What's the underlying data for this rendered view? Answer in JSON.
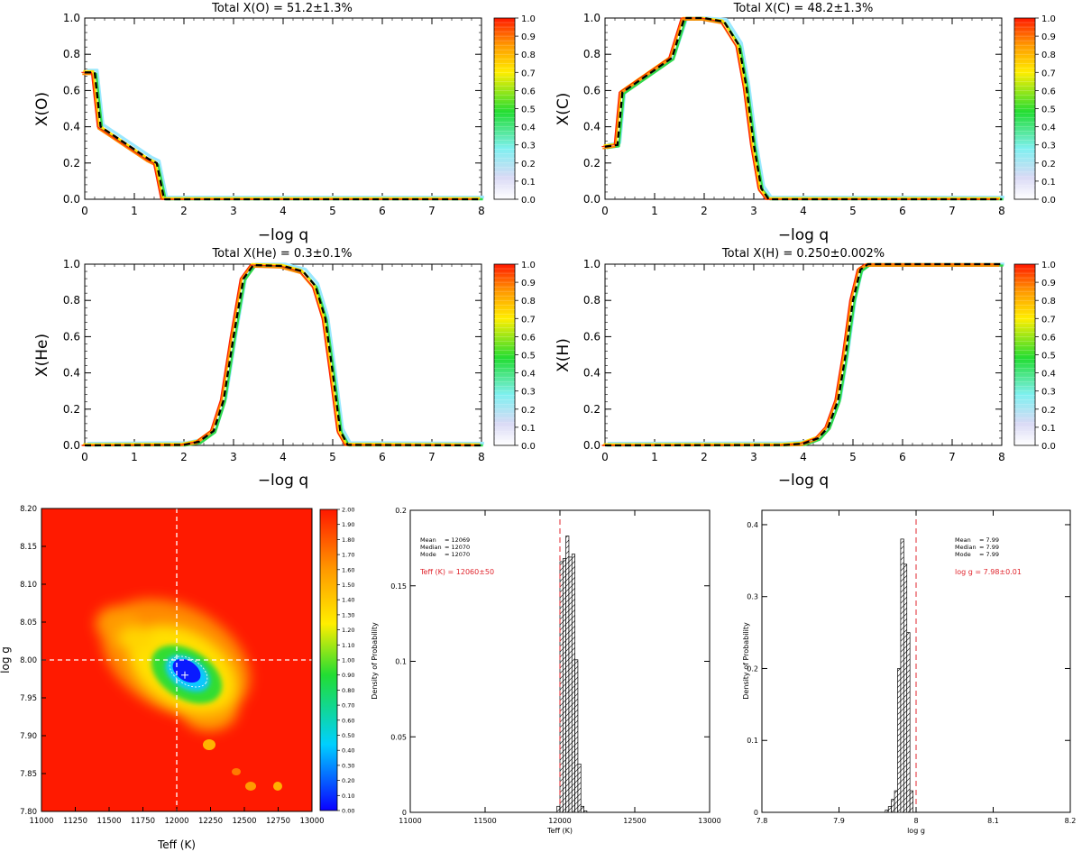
{
  "figure": {
    "colorbar_ticks": [
      "0.0",
      "0.1",
      "0.2",
      "0.3",
      "0.4",
      "0.5",
      "0.6",
      "0.7",
      "0.8",
      "0.9",
      "1.0"
    ],
    "contour_colorbar_ticks": [
      "0.00",
      "0.10",
      "0.20",
      "0.30",
      "0.40",
      "0.50",
      "0.60",
      "0.70",
      "0.80",
      "0.90",
      "1.00",
      "1.10",
      "1.20",
      "1.30",
      "1.40",
      "1.50",
      "1.60",
      "1.70",
      "1.80",
      "1.90",
      "2.00"
    ],
    "colors": {
      "dashed_profile": "#000000",
      "median_line": "#e0242c",
      "contour_background": "#ff1a00",
      "contour_core": "#0a1aff"
    }
  },
  "chart_data": [
    {
      "type": "line",
      "title": "Total X(O) = 51.2±1.3%",
      "xlabel": "−log q",
      "ylabel": "X(O)",
      "xlim": [
        0,
        8
      ],
      "ylim": [
        0,
        1
      ],
      "x_ticks": [
        "0",
        "1",
        "2",
        "3",
        "4",
        "5",
        "6",
        "7",
        "8"
      ],
      "y_ticks": [
        "0.0",
        "0.2",
        "0.4",
        "0.6",
        "0.8",
        "1.0"
      ],
      "series": [
        {
          "x": [
            0,
            0.2,
            0.32,
            1.3,
            1.45,
            1.6,
            2,
            8
          ],
          "y": [
            0.7,
            0.7,
            0.4,
            0.22,
            0.2,
            0.0,
            0,
            0
          ]
        }
      ]
    },
    {
      "type": "line",
      "title": "Total X(C) = 48.2±1.3%",
      "xlabel": "−log q",
      "ylabel": "X(C)",
      "xlim": [
        0,
        8
      ],
      "ylim": [
        0,
        1
      ],
      "x_ticks": [
        "0",
        "1",
        "2",
        "3",
        "4",
        "5",
        "6",
        "7",
        "8"
      ],
      "y_ticks": [
        "0.0",
        "0.2",
        "0.4",
        "0.6",
        "0.8",
        "1.0"
      ],
      "series": [
        {
          "x": [
            0,
            0.25,
            0.35,
            1.35,
            1.6,
            2.0,
            2.4,
            2.7,
            2.85,
            3.0,
            3.15,
            3.3,
            8
          ],
          "y": [
            0.29,
            0.3,
            0.59,
            0.78,
            1.0,
            1.0,
            0.98,
            0.85,
            0.62,
            0.3,
            0.06,
            0.0,
            0
          ]
        }
      ]
    },
    {
      "type": "line",
      "title": "Total X(He) = 0.3±0.1%",
      "xlabel": "−log q",
      "ylabel": "X(He)",
      "xlim": [
        0,
        8
      ],
      "ylim": [
        0,
        1
      ],
      "x_ticks": [
        "0",
        "1",
        "2",
        "3",
        "4",
        "5",
        "6",
        "7",
        "8"
      ],
      "y_ticks": [
        "0.0",
        "0.2",
        "0.4",
        "0.6",
        "0.8",
        "1.0"
      ],
      "series": [
        {
          "x": [
            0,
            2.0,
            2.3,
            2.6,
            2.8,
            3.0,
            3.2,
            3.4,
            4.0,
            4.4,
            4.65,
            4.85,
            5.0,
            5.15,
            5.3,
            8
          ],
          "y": [
            0,
            0.003,
            0.02,
            0.08,
            0.25,
            0.6,
            0.92,
            0.995,
            0.99,
            0.96,
            0.88,
            0.7,
            0.4,
            0.08,
            0.003,
            0
          ]
        }
      ]
    },
    {
      "type": "line",
      "title": "Total X(H) = 0.250±0.002%",
      "xlabel": "−log q",
      "ylabel": "X(H)",
      "xlim": [
        0,
        8
      ],
      "ylim": [
        0,
        1
      ],
      "x_ticks": [
        "0",
        "1",
        "2",
        "3",
        "4",
        "5",
        "6",
        "7",
        "8"
      ],
      "y_ticks": [
        "0.0",
        "0.2",
        "0.4",
        "0.6",
        "0.8",
        "1.0"
      ],
      "series": [
        {
          "x": [
            0,
            3.6,
            4.0,
            4.3,
            4.5,
            4.7,
            4.85,
            5.0,
            5.15,
            5.3,
            5.5,
            8
          ],
          "y": [
            0,
            0.002,
            0.01,
            0.04,
            0.1,
            0.25,
            0.5,
            0.8,
            0.97,
            1.0,
            1.0,
            1.0
          ]
        }
      ]
    },
    {
      "type": "heatmap",
      "xlabel": "Teff (K)",
      "ylabel": "log g",
      "xlim": [
        11000,
        13000
      ],
      "ylim": [
        7.8,
        8.2
      ],
      "x_ticks": [
        "11000",
        "11250",
        "11500",
        "11750",
        "12000",
        "12250",
        "12500",
        "12750",
        "13000"
      ],
      "y_ticks": [
        "7.80",
        "7.85",
        "7.90",
        "7.95",
        "8.00",
        "8.05",
        "8.10",
        "8.15",
        "8.20"
      ],
      "crosshair": {
        "x": 12000,
        "y": 8.0
      },
      "best_fit": {
        "x": 12060,
        "y": 7.98
      }
    },
    {
      "type": "bar",
      "xlabel": "Teff (K)",
      "ylabel": "Density of Probability",
      "xlim": [
        11000,
        13000
      ],
      "ylim": [
        0,
        0.2
      ],
      "x_ticks": [
        "11000",
        "11500",
        "12000",
        "12500",
        "13000"
      ],
      "y_ticks": [
        "0",
        "0.05",
        "0.1",
        "0.15",
        "0.2"
      ],
      "bins": [
        11990,
        12010,
        12030,
        12050,
        12070,
        12090,
        12110,
        12130,
        12150,
        12170
      ],
      "values": [
        0.004,
        0.166,
        0.168,
        0.183,
        0.169,
        0.171,
        0.101,
        0.032,
        0.004,
        0.001
      ],
      "bin_width": 20,
      "median_line": 12000,
      "stats": [
        {
          "label": "Mean",
          "value": "= 12069"
        },
        {
          "label": "Median",
          "value": "= 12070"
        },
        {
          "label": "Mode",
          "value": "= 12070"
        }
      ],
      "result": "Teff (K) = 12060±50"
    },
    {
      "type": "bar",
      "xlabel": "log g",
      "ylabel": "Density of Probability",
      "xlim": [
        7.8,
        8.2
      ],
      "ylim": [
        0,
        0.42
      ],
      "x_ticks": [
        "7.8",
        "7.9",
        "8",
        "8.1",
        "8.2"
      ],
      "y_ticks": [
        "0",
        "0.1",
        "0.2",
        "0.3",
        "0.4"
      ],
      "bins": [
        7.962,
        7.966,
        7.97,
        7.974,
        7.978,
        7.982,
        7.986,
        7.99,
        7.994
      ],
      "values": [
        0.003,
        0.008,
        0.018,
        0.03,
        0.2,
        0.38,
        0.345,
        0.25,
        0.03
      ],
      "bin_width": 0.004,
      "median_line": 8.0,
      "stats": [
        {
          "label": "Mean",
          "value": "= 7.99"
        },
        {
          "label": "Median",
          "value": "= 7.99"
        },
        {
          "label": "Mode",
          "value": "= 7.99"
        }
      ],
      "result": "log g = 7.98±0.01"
    }
  ]
}
